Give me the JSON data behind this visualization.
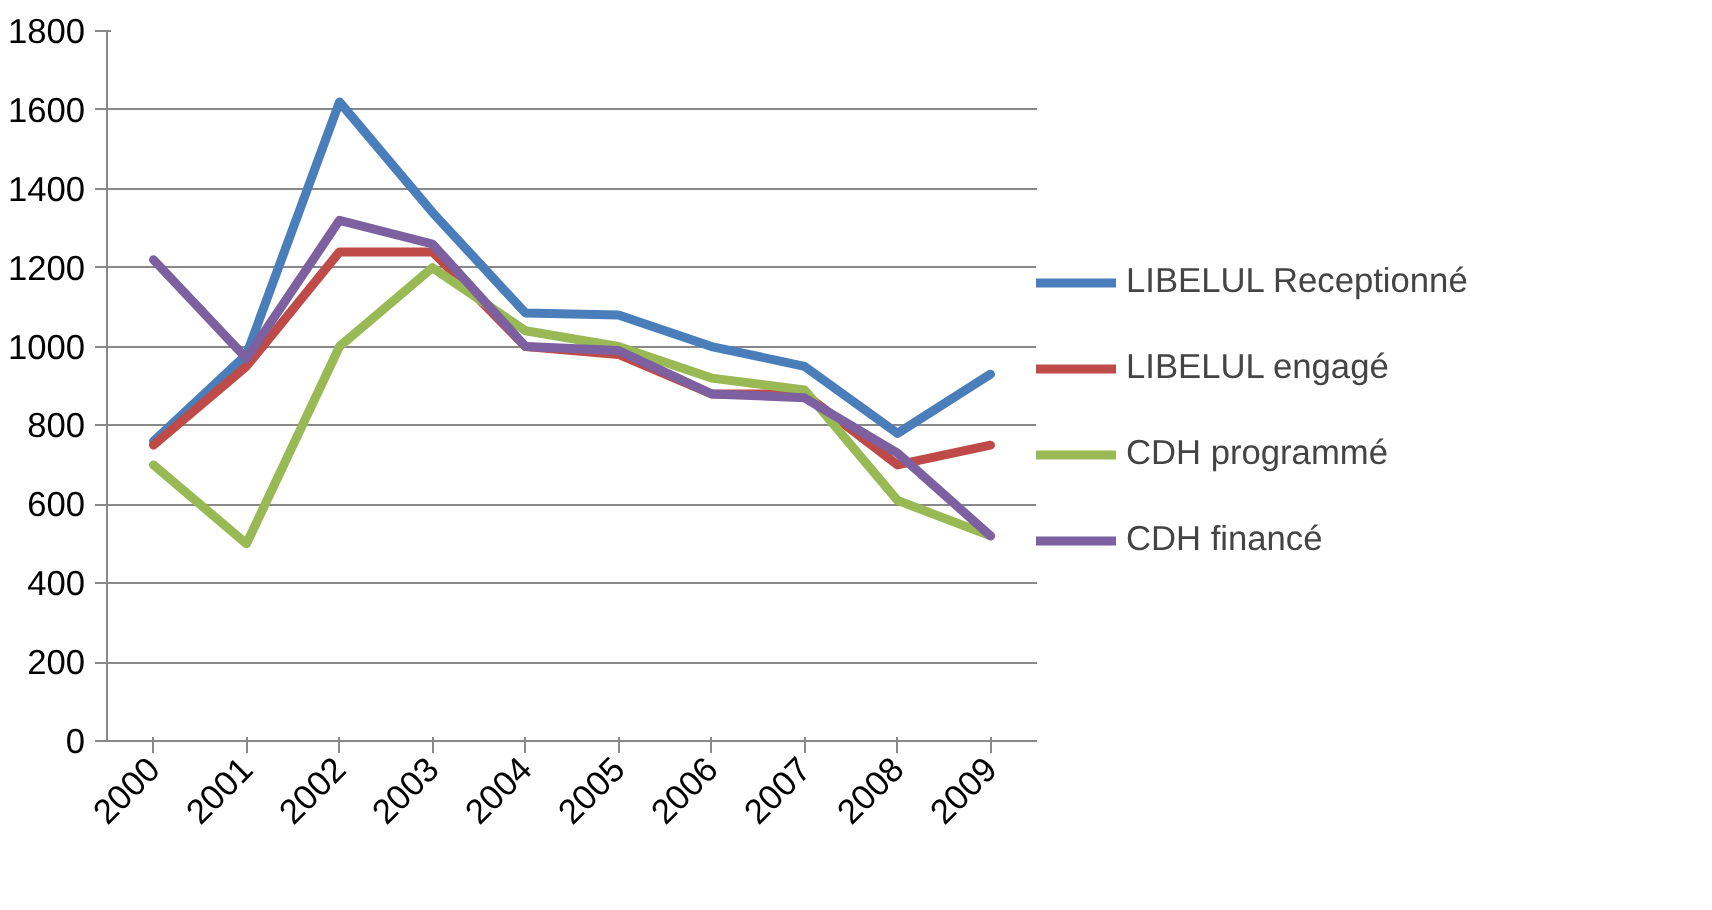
{
  "chart_data": {
    "type": "line",
    "categories": [
      "2000",
      "2001",
      "2002",
      "2003",
      "2004",
      "2005",
      "2006",
      "2007",
      "2008",
      "2009"
    ],
    "ylim": [
      0,
      1800
    ],
    "yticks": [
      0,
      200,
      400,
      600,
      800,
      1000,
      1200,
      1400,
      1600,
      1800
    ],
    "grid": "y",
    "legend": "right",
    "marker": "none",
    "line_style": "solid",
    "series": [
      {
        "name": "LIBELUL Receptionné",
        "color": "#4a7ebb",
        "values": [
          760,
          980,
          1620,
          1340,
          1085,
          1080,
          1000,
          950,
          780,
          930
        ]
      },
      {
        "name": "LIBELUL engagé",
        "color": "#be4b48",
        "values": [
          750,
          950,
          1240,
          1240,
          1000,
          980,
          880,
          880,
          700,
          750
        ]
      },
      {
        "name": "CDH programmé",
        "color": "#98b954",
        "values": [
          700,
          500,
          1000,
          1200,
          1040,
          1000,
          920,
          890,
          610,
          520
        ]
      },
      {
        "name": "CDH financé",
        "color": "#7d60a0",
        "values": [
          1220,
          970,
          1320,
          1260,
          1000,
          990,
          880,
          870,
          730,
          520
        ]
      }
    ]
  }
}
